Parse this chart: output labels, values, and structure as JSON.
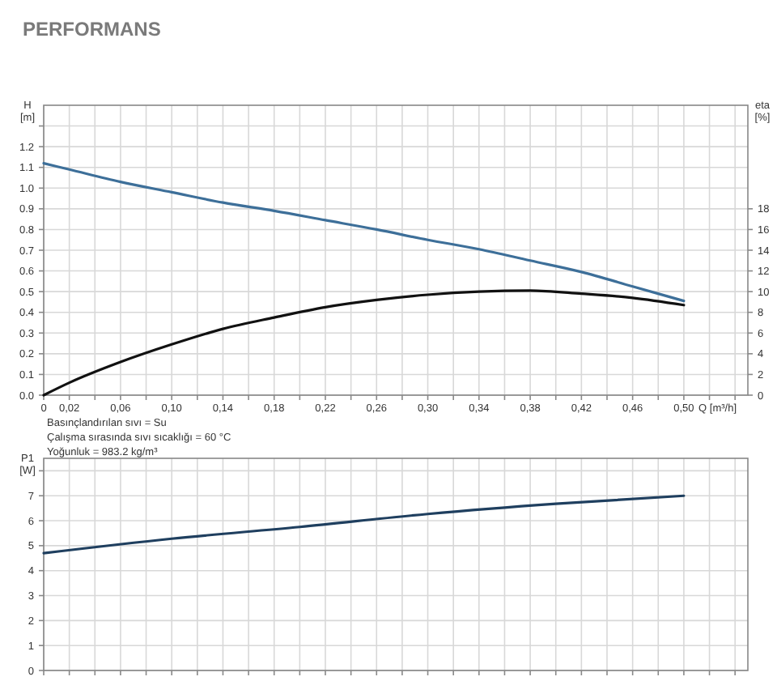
{
  "chart_data": [
    {
      "type": "line",
      "title": "PERFORMANS",
      "ylabel": "H [m]",
      "y2label": "eta [%]",
      "xlabel": "Q [m³/h]",
      "x": [
        0,
        0.02,
        0.06,
        0.1,
        0.14,
        0.18,
        0.22,
        0.26,
        0.3,
        0.34,
        0.38,
        0.42,
        0.46,
        0.5
      ],
      "series": [
        {
          "color": "#3d6f99",
          "values": [
            1.12,
            1.09,
            1.03,
            0.98,
            0.93,
            0.89,
            0.845,
            0.8,
            0.75,
            0.705,
            0.65,
            0.595,
            0.525,
            0.455
          ]
        },
        {
          "color": "#111111",
          "axis": "y2",
          "values": [
            0,
            1.2,
            3.2,
            4.9,
            6.4,
            7.5,
            8.5,
            9.2,
            9.7,
            10.0,
            10.1,
            9.8,
            9.4,
            8.7
          ]
        }
      ],
      "xlim": [
        0,
        0.55
      ],
      "xticks": [
        0,
        {
          "value": 0.02,
          "label": "0,02"
        },
        {
          "value": 0.04,
          "label": null
        },
        {
          "value": 0.06,
          "label": "0,06"
        },
        {
          "value": 0.08,
          "label": null
        },
        {
          "value": 0.1,
          "label": "0,10"
        },
        {
          "value": 0.12,
          "label": null
        },
        {
          "value": 0.14,
          "label": "0,14"
        },
        {
          "value": 0.16,
          "label": null
        },
        {
          "value": 0.18,
          "label": "0,18"
        },
        {
          "value": 0.2,
          "label": null
        },
        {
          "value": 0.22,
          "label": "0,22"
        },
        {
          "value": 0.24,
          "label": null
        },
        {
          "value": 0.26,
          "label": "0,26"
        },
        {
          "value": 0.28,
          "label": null
        },
        {
          "value": 0.3,
          "label": "0,30"
        },
        {
          "value": 0.32,
          "label": null
        },
        {
          "value": 0.34,
          "label": "0,34"
        },
        {
          "value": 0.36,
          "label": null
        },
        {
          "value": 0.38,
          "label": "0,38"
        },
        {
          "value": 0.4,
          "label": null
        },
        {
          "value": 0.42,
          "label": "0,42"
        },
        {
          "value": 0.44,
          "label": null
        },
        {
          "value": 0.46,
          "label": "0,46"
        },
        {
          "value": 0.48,
          "label": null
        },
        {
          "value": 0.5,
          "label": "0,50"
        },
        {
          "value": 0.52,
          "label": null
        },
        {
          "value": 0.54,
          "label": null
        }
      ],
      "ylim": [
        0,
        1.4
      ],
      "yticks": [
        {
          "value": 0,
          "label": "0.0"
        },
        {
          "value": 0.1,
          "label": "0.1"
        },
        {
          "value": 0.2,
          "label": "0.2"
        },
        {
          "value": 0.3,
          "label": "0.3"
        },
        {
          "value": 0.4,
          "label": "0.4"
        },
        {
          "value": 0.5,
          "label": "0.5"
        },
        {
          "value": 0.6,
          "label": "0.6"
        },
        {
          "value": 0.7,
          "label": "0.7"
        },
        {
          "value": 0.8,
          "label": "0.8"
        },
        {
          "value": 0.9,
          "label": "0.9"
        },
        {
          "value": 1.0,
          "label": "1.0"
        },
        {
          "value": 1.1,
          "label": "1.1"
        },
        {
          "value": 1.2,
          "label": "1.2"
        },
        {
          "value": 1.3,
          "label": null
        }
      ],
      "y2lim": [
        0,
        28
      ],
      "y2ticks": [
        0,
        2,
        4,
        6,
        8,
        10,
        12,
        14,
        16,
        18
      ],
      "grid": true,
      "annotations": [
        "Basınçlandırılan sıvı = Su",
        "Çalışma sırasında sıvı sıcaklığı = 60 °C",
        "Yoğunluk = 983.2 kg/m³"
      ]
    },
    {
      "type": "line",
      "ylabel": "P1 [W]",
      "x": [
        0,
        0.1,
        0.2,
        0.3,
        0.4,
        0.5
      ],
      "series": [
        {
          "color": "#1f3f5f",
          "values": [
            4.7,
            5.28,
            5.75,
            6.27,
            6.68,
            7.0
          ]
        }
      ],
      "xlim": [
        0,
        0.55
      ],
      "xticks": [
        0,
        0.02,
        0.04,
        0.06,
        0.08,
        0.1,
        0.12,
        0.14,
        0.16,
        0.18,
        0.2,
        0.22,
        0.24,
        0.26,
        0.28,
        0.3,
        0.32,
        0.34,
        0.36,
        0.38,
        0.4,
        0.42,
        0.44,
        0.46,
        0.48,
        0.5,
        0.52,
        0.54
      ],
      "ylim": [
        0,
        8.5
      ],
      "yticks": [
        0,
        1,
        2,
        3,
        4,
        5,
        6,
        7,
        {
          "value": 8,
          "label": null
        }
      ],
      "tick_labels": "y",
      "grid": true
    }
  ]
}
